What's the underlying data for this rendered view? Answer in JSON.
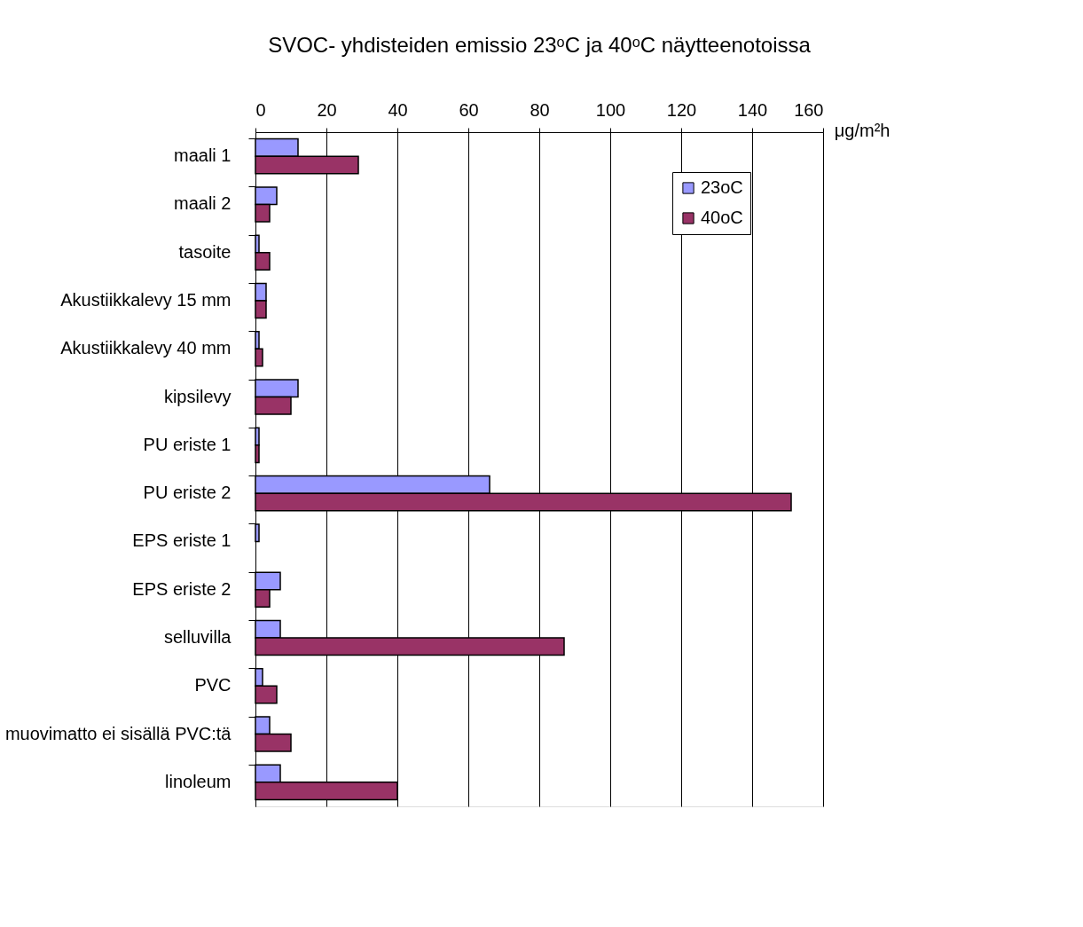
{
  "chart_data": {
    "type": "bar",
    "orientation": "horizontal",
    "title": "SVOC- yhdisteiden emissio 23ᵒC ja 40ᵒC näytteenotoissa",
    "xlabel": "μg/m²h",
    "categories": [
      "maali 1",
      "maali 2",
      "tasoite",
      "Akustiikkalevy 15 mm",
      "Akustiikkalevy 40 mm",
      "kipsilevy",
      "PU eriste 1",
      "PU eriste 2",
      "EPS eriste 1",
      "EPS eriste 2",
      "selluvilla",
      "PVC",
      "muovimatto ei sisällä PVC:tä",
      "linoleum"
    ],
    "series": [
      {
        "name": "23oC",
        "color": "#9999ff",
        "values": [
          12,
          6,
          1,
          3,
          1,
          12,
          1,
          66,
          1,
          7,
          7,
          2,
          4,
          7
        ]
      },
      {
        "name": "40oC",
        "color": "#993366",
        "values": [
          29,
          4,
          4,
          3,
          2,
          10,
          1,
          151,
          null,
          4,
          87,
          6,
          10,
          40
        ]
      }
    ],
    "xlim": [
      0,
      160
    ],
    "xticks": [
      0,
      20,
      40,
      60,
      80,
      100,
      120,
      140,
      160
    ],
    "grid": "x",
    "legend": "top right"
  }
}
